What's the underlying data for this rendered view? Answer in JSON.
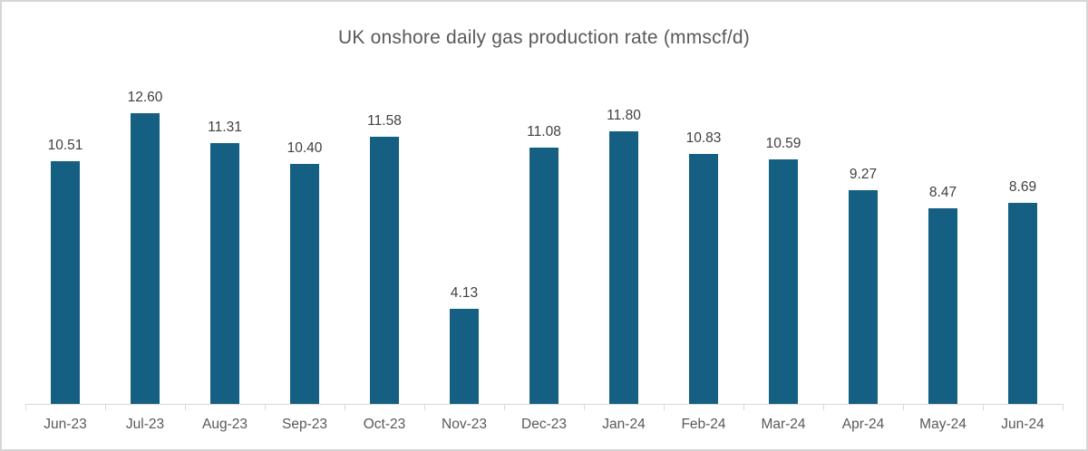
{
  "chart_data": {
    "type": "bar",
    "title": "UK onshore daily gas production rate (mmscf/d)",
    "categories": [
      "Jun-23",
      "Jul-23",
      "Aug-23",
      "Sep-23",
      "Oct-23",
      "Nov-23",
      "Dec-23",
      "Jan-24",
      "Feb-24",
      "Mar-24",
      "Apr-24",
      "May-24",
      "Jun-24"
    ],
    "values": [
      10.51,
      12.6,
      11.31,
      10.4,
      11.58,
      4.13,
      11.08,
      11.8,
      10.83,
      10.59,
      9.27,
      8.47,
      8.69
    ],
    "data_labels": [
      "10.51",
      "12.60",
      "11.31",
      "10.40",
      "11.58",
      "4.13",
      "11.08",
      "11.80",
      "10.83",
      "10.59",
      "9.27",
      "8.47",
      "8.69"
    ],
    "xlabel": "",
    "ylabel": "",
    "ylim": [
      0,
      14
    ],
    "grid": false,
    "legend": false,
    "data_labels_visible": true,
    "colors": {
      "bar": "#156082",
      "title_text": "#595959",
      "data_label_text": "#404040",
      "category_label_text": "#595959",
      "axis_line": "#d9d9d9",
      "frame_border": "#d6d6d6",
      "background": "#ffffff"
    }
  }
}
